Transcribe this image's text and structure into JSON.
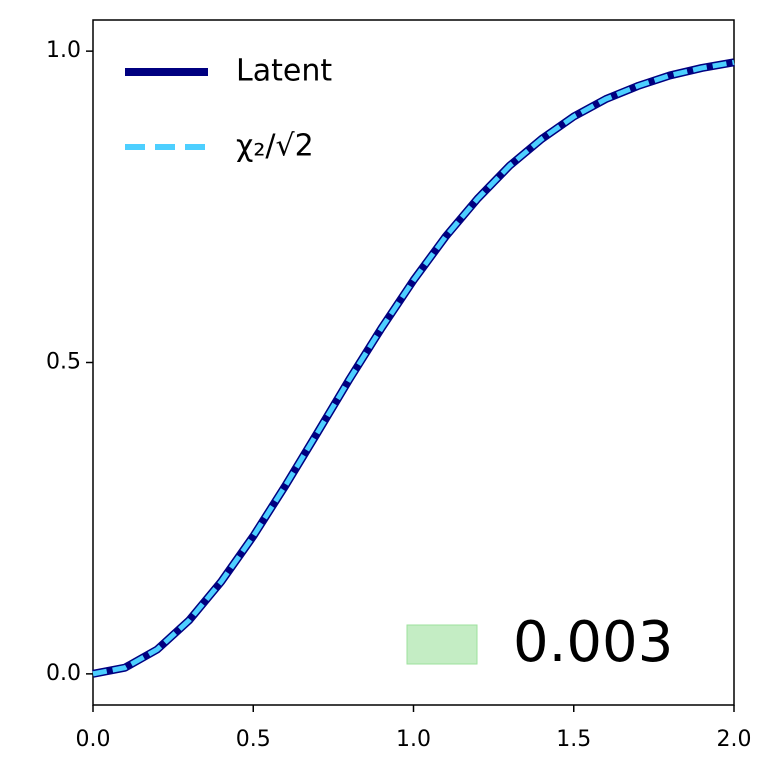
{
  "chart_data": {
    "type": "line",
    "x": [
      0,
      0.1,
      0.2,
      0.3,
      0.4,
      0.5,
      0.6,
      0.7,
      0.8,
      0.9,
      1.0,
      1.1,
      1.2,
      1.3,
      1.4,
      1.5,
      1.6,
      1.7,
      1.8,
      1.9,
      2.0
    ],
    "series": [
      {
        "name": "Latent",
        "color": "#000080",
        "linestyle": "solid",
        "values": [
          0,
          0.01,
          0.039,
          0.086,
          0.148,
          0.221,
          0.302,
          0.387,
          0.473,
          0.555,
          0.632,
          0.702,
          0.763,
          0.816,
          0.859,
          0.895,
          0.923,
          0.944,
          0.961,
          0.973,
          0.982
        ]
      },
      {
        "name": "χ₂/√2",
        "color": "#4dcfff",
        "linestyle": "dashed",
        "values": [
          0,
          0.01,
          0.039,
          0.086,
          0.148,
          0.221,
          0.302,
          0.387,
          0.473,
          0.555,
          0.632,
          0.702,
          0.763,
          0.816,
          0.859,
          0.895,
          0.923,
          0.944,
          0.961,
          0.973,
          0.982
        ]
      }
    ],
    "xlim": [
      0,
      2
    ],
    "xticks": [
      {
        "value": 0,
        "label": "0.0"
      },
      {
        "value": 0.5,
        "label": "0.5"
      },
      {
        "value": 1,
        "label": "1.0"
      },
      {
        "value": 1.5,
        "label": "1.5"
      },
      {
        "value": 2,
        "label": "2.0"
      }
    ],
    "ylim": [
      -0.05,
      1.05
    ],
    "yticks": [
      {
        "value": 0,
        "label": "0.0"
      },
      {
        "value": 0.5,
        "label": "0.5"
      },
      {
        "value": 1,
        "label": "1.0"
      }
    ],
    "legend": "upper left",
    "annotation": {
      "text": "0.003",
      "color": "#9de19d"
    }
  }
}
